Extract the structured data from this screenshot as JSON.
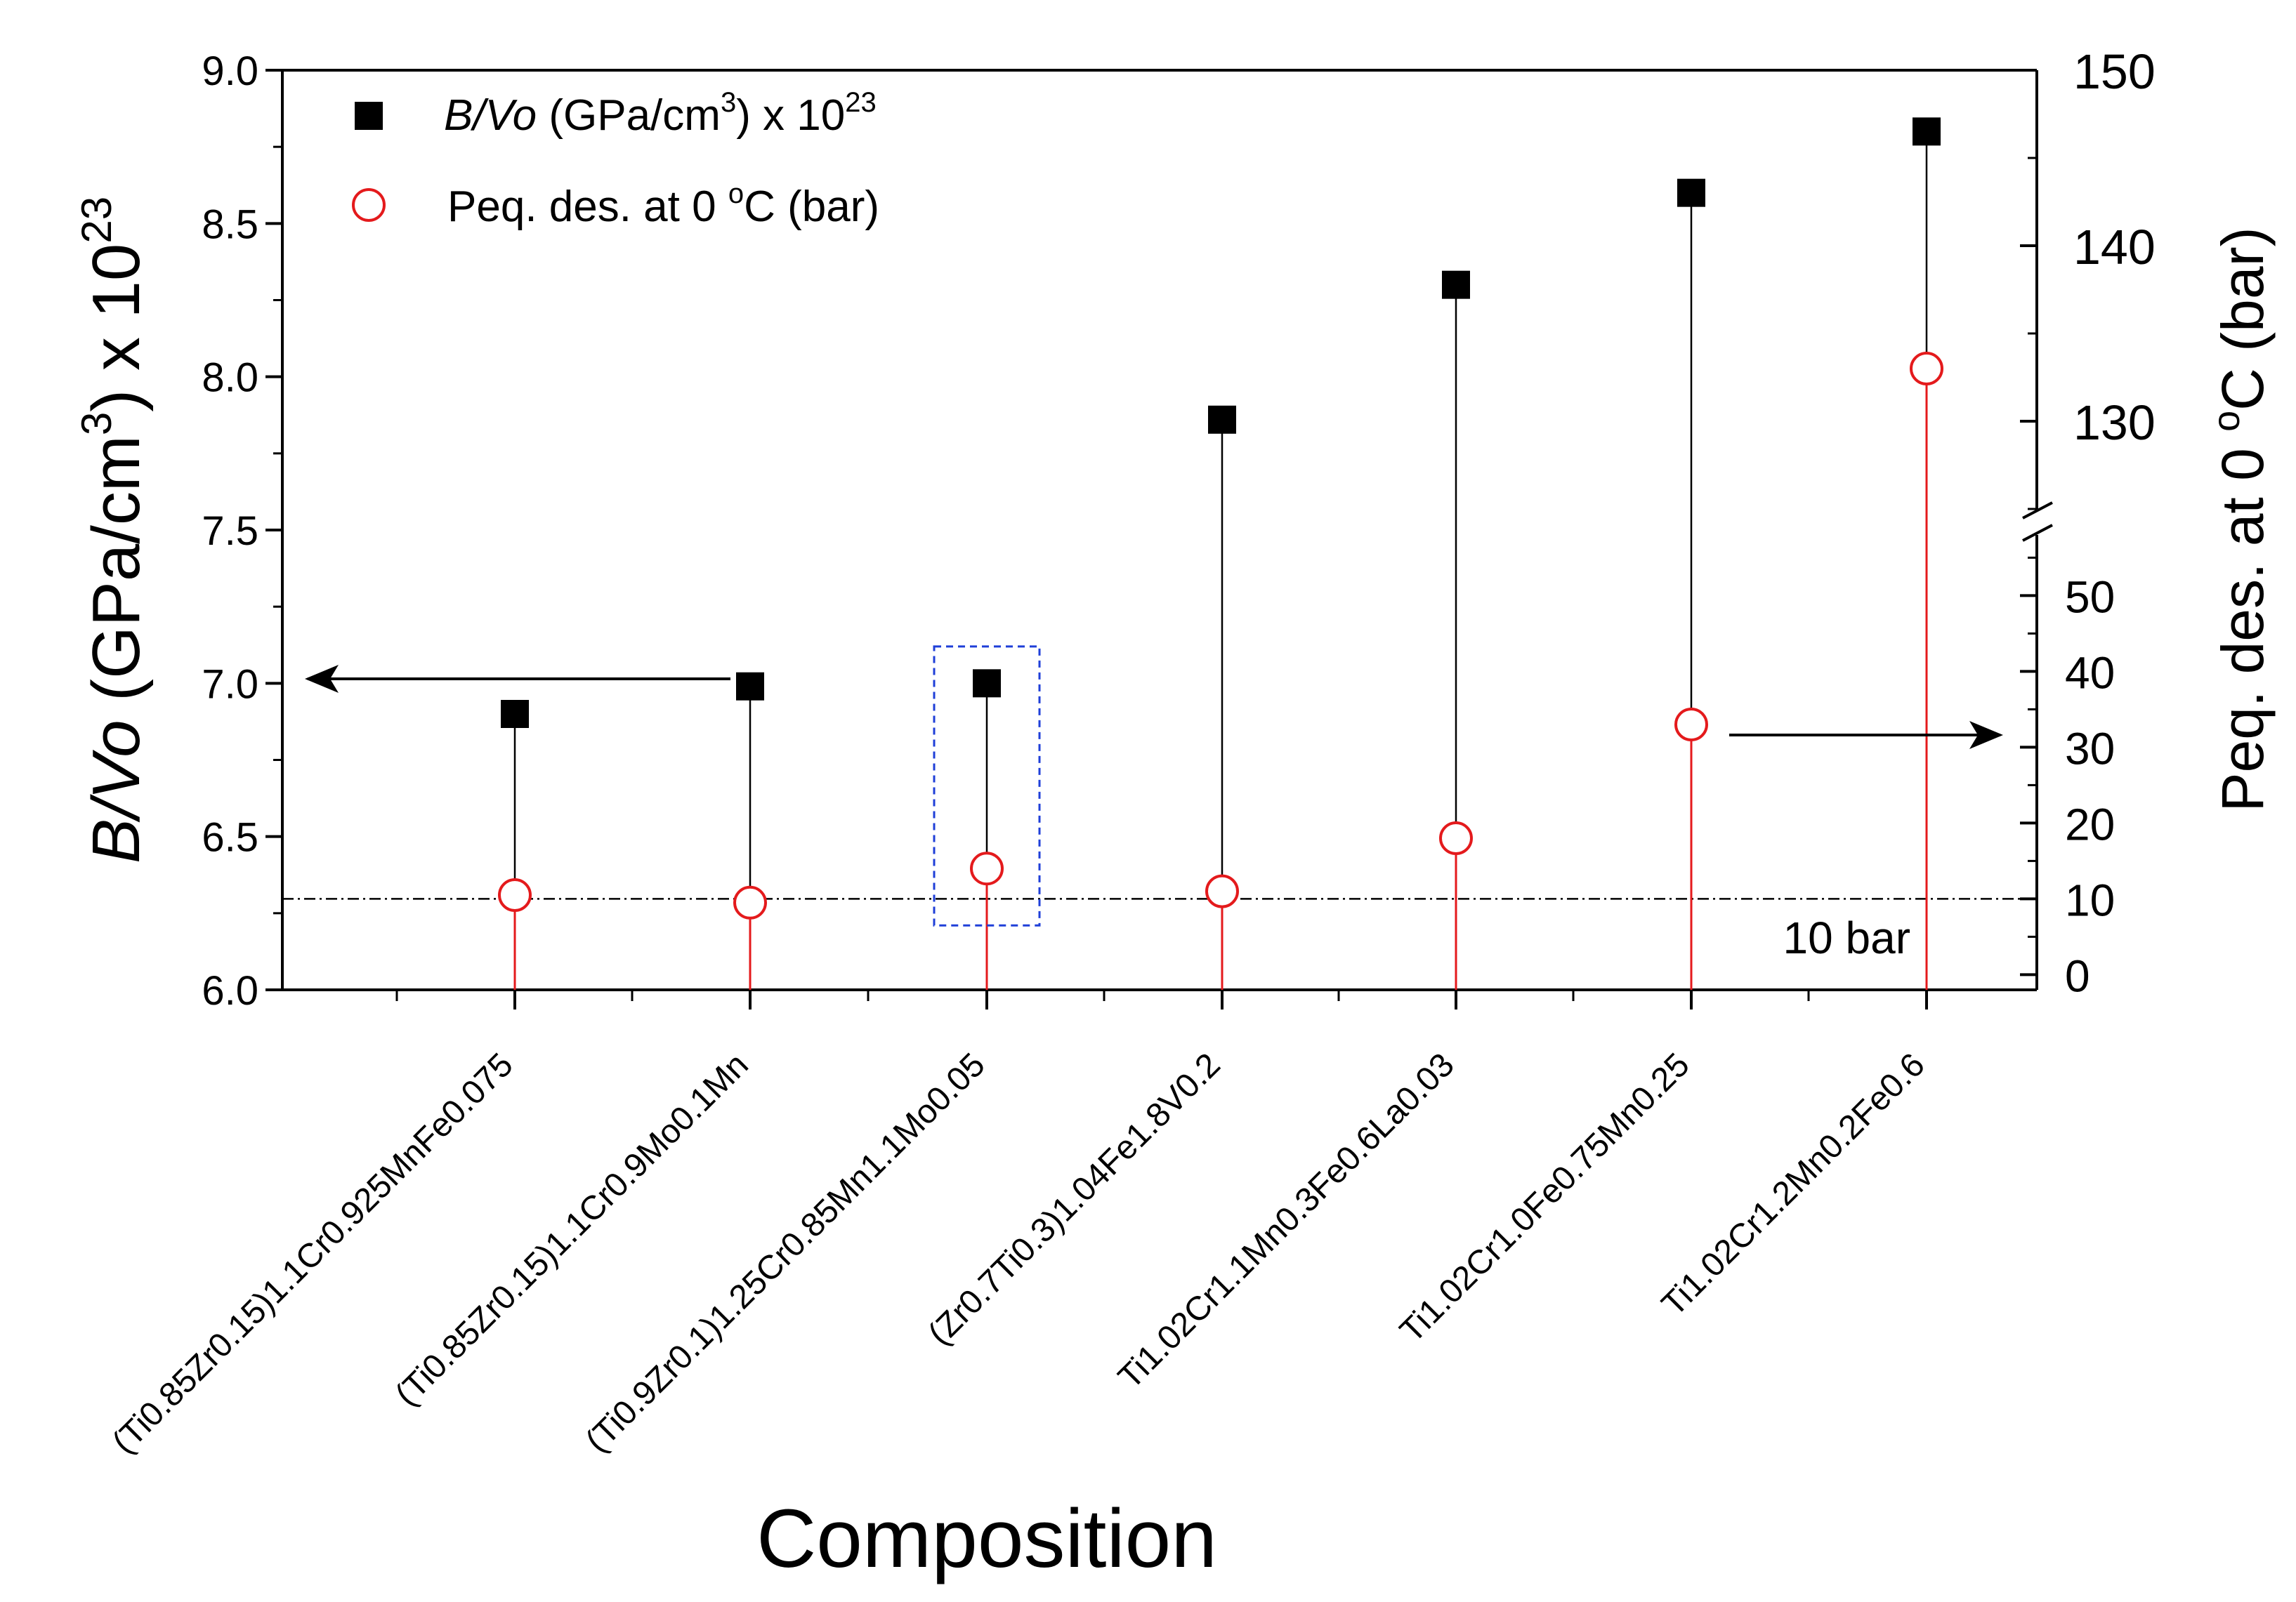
{
  "chart_data": {
    "type": "scatter",
    "xlabel": "Composition",
    "categories": [
      "(Ti0.85Zr0.15)1.1Cr0.925MnFe0.075",
      "(Ti0.85Zr0.15)1.1Cr0.9Mo0.1Mn",
      "(Ti0.9Zr0.1)1.25Cr0.85Mn1.1Mo0.05",
      "(Zr0.7Ti0.3)1.04Fe1.8V0.2",
      "Ti1.02Cr1.1Mn0.3Fe0.6La0.03",
      "Ti1.02Cr1.0Fe0.75Mn0.25",
      "Ti1.02Cr1.2Mn0.2Fe0.6"
    ],
    "left_axis": {
      "label_italic": "B/Vo",
      "label_rest": " (GPa/cm",
      "label_sup1": "3",
      "label_close": ") x 10",
      "label_sup2": "23",
      "ylim": [
        6.0,
        9.0
      ],
      "ticks": [
        "6.0",
        "6.5",
        "7.0",
        "7.5",
        "8.0",
        "8.5",
        "9.0"
      ]
    },
    "right_axis": {
      "label_main": "Peq. des. at 0 ",
      "label_sup": "o",
      "label_end": "C (bar)",
      "broken": true,
      "lower_range": [
        -2,
        58
      ],
      "upper_range": [
        125,
        150
      ],
      "lower_ticks": [
        "0",
        "10",
        "20",
        "30",
        "40",
        "50"
      ],
      "upper_ticks": [
        "130",
        "140",
        "150"
      ]
    },
    "series": [
      {
        "name_italic": "B/Vo",
        "name_rest": " (GPa/cm",
        "name_sup1": "3",
        "name_close": ") x 10",
        "name_sup2": "23",
        "axis": "left",
        "marker": "filled-square",
        "color": "#000000",
        "values": [
          6.9,
          6.99,
          7.0,
          7.86,
          8.3,
          8.6,
          8.8
        ]
      },
      {
        "name_main": "Peq. des. at 0 ",
        "name_sup": "o",
        "name_end": "C (bar)",
        "axis": "right",
        "marker": "open-circle",
        "color": "#e41a1c",
        "values": [
          10.5,
          9.5,
          14,
          11,
          18,
          33,
          133
        ]
      }
    ],
    "reference_line": {
      "value": 10,
      "label": "10 bar",
      "style": "dash-dot"
    },
    "highlight_box_index": 2,
    "highlight_color": "#1f3fd8"
  }
}
